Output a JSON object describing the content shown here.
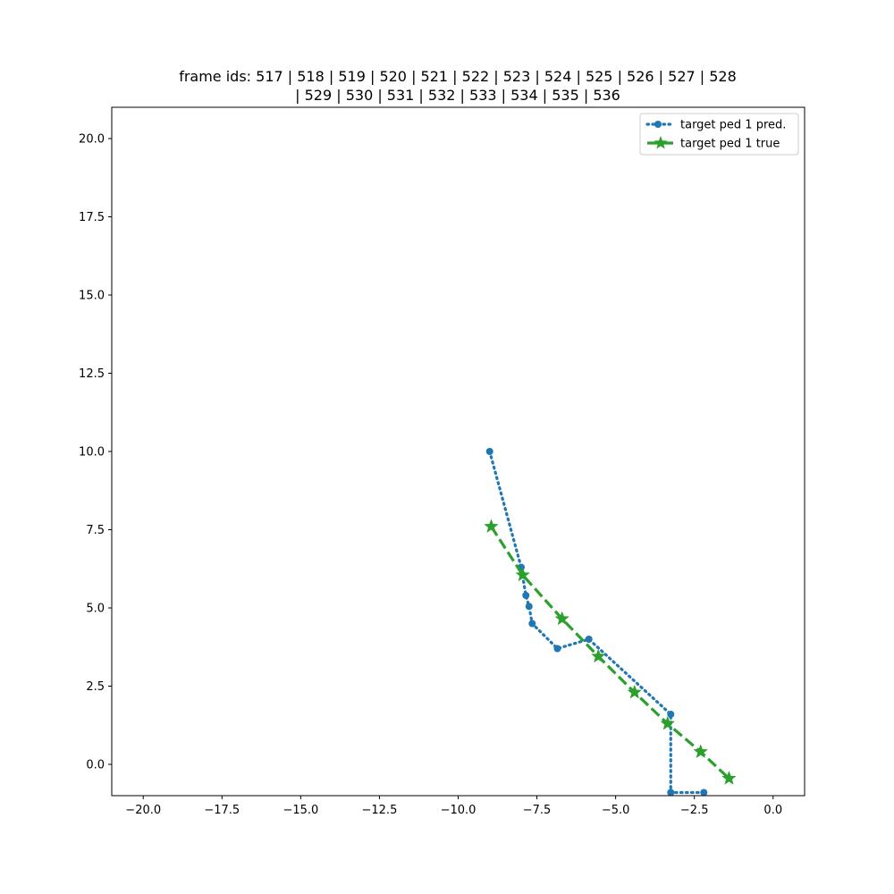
{
  "chart_data": {
    "type": "line",
    "title_lines": [
      "frame ids: 517 | 518 | 519 | 520 | 521 | 522 | 523 | 524 | 525 | 526 | 527 | 528",
      "| 529 | 530 | 531 | 532 | 533 | 534 | 535 | 536"
    ],
    "xlim": [
      -21,
      1
    ],
    "ylim": [
      -1,
      21
    ],
    "x_ticks": [
      -20,
      -17.5,
      -15,
      -12.5,
      -10,
      -7.5,
      -5,
      -2.5,
      0
    ],
    "x_tick_labels": [
      "−20.0",
      "−17.5",
      "−15.0",
      "−12.5",
      "−10.0",
      "−7.5",
      "−5.0",
      "−2.5",
      "0.0"
    ],
    "y_ticks": [
      0,
      2.5,
      5,
      7.5,
      10,
      12.5,
      15,
      17.5,
      20
    ],
    "y_tick_labels": [
      "0.0",
      "2.5",
      "5.0",
      "7.5",
      "10.0",
      "12.5",
      "15.0",
      "17.5",
      "20.0"
    ],
    "grid": false,
    "legend_position": "top-right",
    "series": [
      {
        "name": "target ped 1 pred.",
        "color": "#1f77b4",
        "line_style": "dotted",
        "marker": "circle",
        "x": [
          -9.0,
          -8.0,
          -7.85,
          -7.75,
          -7.65,
          -6.85,
          -5.85,
          -3.25,
          -3.25,
          -2.2
        ],
        "y": [
          10.0,
          6.3,
          5.4,
          5.05,
          4.5,
          3.7,
          4.0,
          1.6,
          -0.9,
          -0.9
        ]
      },
      {
        "name": "target ped 1 true",
        "color": "#2ca02c",
        "line_style": "dashed",
        "marker": "star",
        "x": [
          -8.95,
          -7.95,
          -6.7,
          -5.55,
          -4.4,
          -3.35,
          -2.3,
          -1.4
        ],
        "y": [
          7.6,
          6.05,
          4.65,
          3.45,
          2.3,
          1.3,
          0.4,
          -0.45
        ]
      }
    ]
  }
}
